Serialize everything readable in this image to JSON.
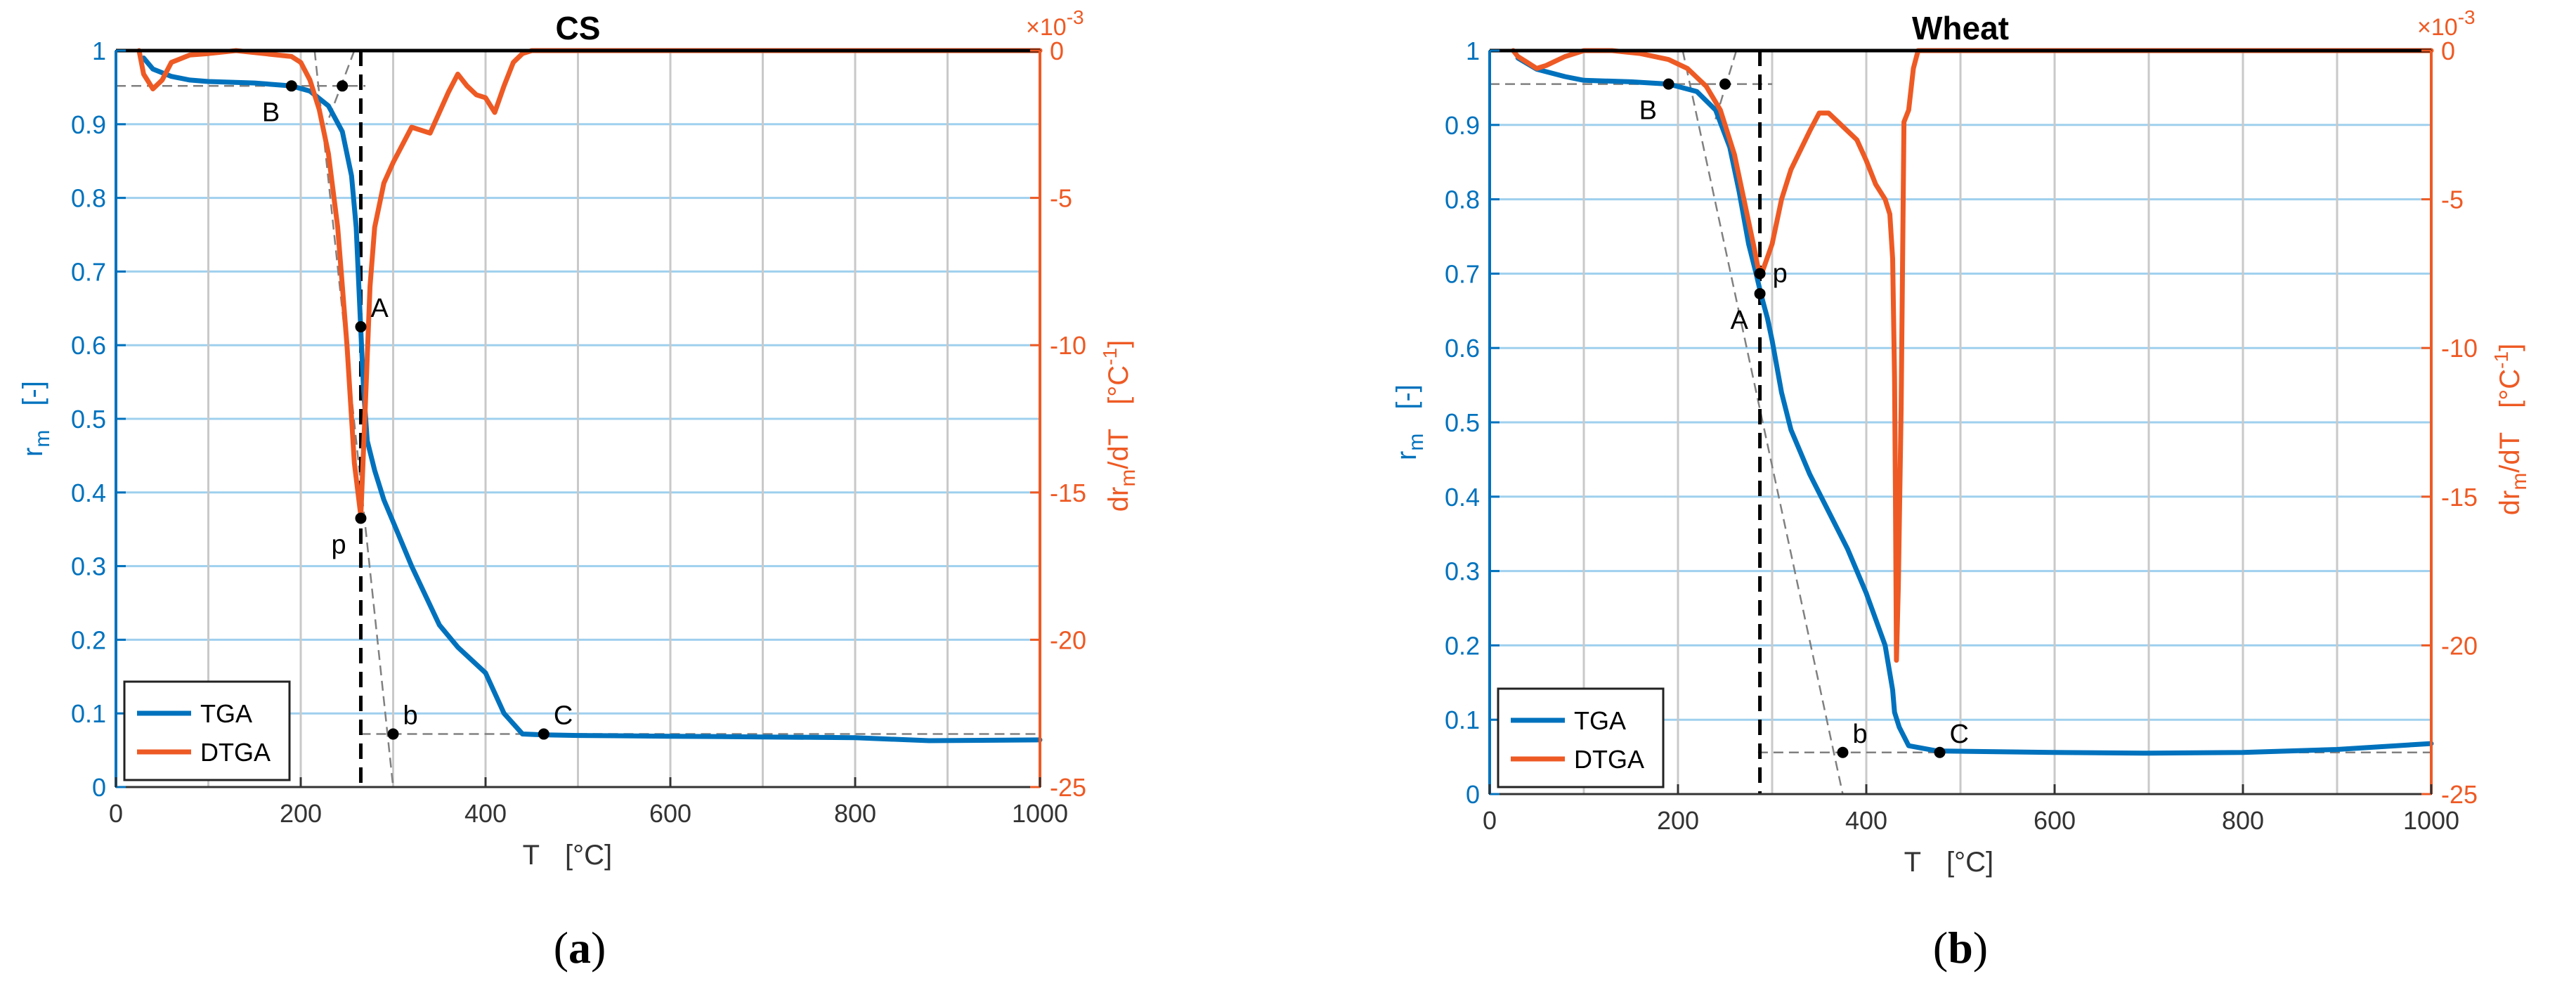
{
  "colors": {
    "tga": "#0072BD",
    "dtga": "#EE5A24",
    "grid_major": "#c9c9c9",
    "grid_minor": "#9fd0ee",
    "annot": "#000000",
    "guide": "#808080"
  },
  "x_axis": {
    "label": "T",
    "unit": "[°C]",
    "ticks": [
      "0",
      "200",
      "400",
      "600",
      "800",
      "1000"
    ]
  },
  "y_left": {
    "label_main": "r",
    "label_sub": "m",
    "unit": "[-]",
    "ticks": [
      "0",
      "0.1",
      "0.2",
      "0.3",
      "0.4",
      "0.5",
      "0.6",
      "0.7",
      "0.8",
      "0.9",
      "1"
    ]
  },
  "y_right": {
    "label_main": "dr",
    "label_sub": "m",
    "label_tail": "/dT",
    "unit_main": "[°C",
    "unit_sup": "-1",
    "unit_close": "]",
    "ticks": [
      "0",
      "-5",
      "-10",
      "-15",
      "-20",
      "-25"
    ],
    "exponent_base": "×10",
    "exponent_power": "-3"
  },
  "legend": {
    "tga": "TGA",
    "dtga": "DTGA"
  },
  "chart_data": [
    {
      "type": "line",
      "title": "CS",
      "caption_open": "(",
      "caption_letter": "a",
      "caption_close": ")",
      "xlim": [
        0,
        1000
      ],
      "ylim_left": [
        0,
        1
      ],
      "ylim_right": [
        -25,
        0
      ],
      "right_axis_scale": "×10^-3",
      "grid": true,
      "legend_position": "bottom-left",
      "series": [
        {
          "name": "TGA",
          "axis": "left",
          "x": [
            30,
            40,
            60,
            80,
            100,
            150,
            190,
            210,
            230,
            245,
            255,
            260,
            265,
            268,
            272,
            280,
            290,
            300,
            320,
            350,
            370,
            400,
            420,
            440,
            460,
            500,
            600,
            700,
            800,
            880,
            1000
          ],
          "y": [
            0.99,
            0.975,
            0.965,
            0.96,
            0.958,
            0.956,
            0.952,
            0.945,
            0.925,
            0.89,
            0.83,
            0.76,
            0.62,
            0.54,
            0.47,
            0.43,
            0.39,
            0.36,
            0.3,
            0.22,
            0.19,
            0.155,
            0.1,
            0.072,
            0.071,
            0.07,
            0.069,
            0.068,
            0.067,
            0.063,
            0.064
          ]
        },
        {
          "name": "DTGA",
          "axis": "right",
          "x": [
            25,
            30,
            40,
            50,
            60,
            80,
            100,
            130,
            160,
            190,
            200,
            210,
            220,
            230,
            240,
            250,
            258,
            265,
            270,
            275,
            280,
            290,
            300,
            320,
            340,
            360,
            370,
            380,
            390,
            400,
            410,
            420,
            430,
            440,
            450,
            460,
            500,
            600,
            700,
            800,
            900,
            1000
          ],
          "y": [
            0,
            -0.8,
            -1.3,
            -1.0,
            -0.4,
            -0.15,
            -0.1,
            0,
            -0.1,
            -0.2,
            -0.4,
            -1.0,
            -2.0,
            -3.5,
            -6.0,
            -10.0,
            -14.0,
            -15.8,
            -12.0,
            -8.0,
            -6.0,
            -4.5,
            -3.8,
            -2.6,
            -2.8,
            -1.4,
            -0.8,
            -1.2,
            -1.5,
            -1.6,
            -2.1,
            -1.2,
            -0.4,
            -0.1,
            0,
            0,
            0,
            0,
            0,
            0,
            0,
            0
          ]
        }
      ],
      "points": [
        {
          "label": "B",
          "x": 190,
          "y": 0.952,
          "label_pos": "below-left"
        },
        {
          "label": "",
          "x": 245,
          "y": 0.952,
          "label_pos": "none"
        },
        {
          "label": "A",
          "x": 265,
          "y": 0.625,
          "label_pos": "above-right"
        },
        {
          "label": "p",
          "x": 265,
          "y": 0.365,
          "label_pos": "below-left"
        },
        {
          "label": "b",
          "x": 300,
          "y": 0.072,
          "label_pos": "above-right"
        },
        {
          "label": "C",
          "x": 463,
          "y": 0.072,
          "label_pos": "above-right"
        }
      ],
      "vline_x": 265,
      "guide_lines": [
        {
          "x1": 0,
          "y1": 0.952,
          "x2": 270,
          "y2": 0.952
        },
        {
          "x1": 215,
          "y1": 1.0,
          "x2": 300,
          "y2": 0.0
        },
        {
          "x1": 258,
          "y1": 1.0,
          "x2": 228,
          "y2": 0.9
        },
        {
          "x1": 265,
          "y1": 0.072,
          "x2": 1000,
          "y2": 0.072
        }
      ]
    },
    {
      "type": "line",
      "title": "Wheat",
      "caption_open": "(",
      "caption_letter": "b",
      "caption_close": ")",
      "xlim": [
        0,
        1000
      ],
      "ylim_left": [
        0,
        1
      ],
      "ylim_right": [
        -25,
        0
      ],
      "right_axis_scale": "×10^-3",
      "grid": true,
      "legend_position": "bottom-left",
      "series": [
        {
          "name": "TGA",
          "axis": "left",
          "x": [
            30,
            50,
            80,
            100,
            150,
            190,
            220,
            240,
            255,
            265,
            275,
            283,
            288,
            295,
            300,
            310,
            320,
            340,
            360,
            380,
            400,
            420,
            428,
            430,
            435,
            445,
            475,
            600,
            700,
            800,
            900,
            1000
          ],
          "y": [
            0.99,
            0.975,
            0.965,
            0.96,
            0.958,
            0.955,
            0.945,
            0.92,
            0.87,
            0.81,
            0.74,
            0.7,
            0.673,
            0.64,
            0.61,
            0.54,
            0.49,
            0.43,
            0.38,
            0.33,
            0.27,
            0.2,
            0.14,
            0.11,
            0.09,
            0.065,
            0.058,
            0.056,
            0.055,
            0.056,
            0.06,
            0.068
          ]
        },
        {
          "name": "DTGA",
          "axis": "right",
          "x": [
            25,
            30,
            40,
            50,
            60,
            80,
            100,
            130,
            160,
            190,
            210,
            230,
            245,
            260,
            270,
            280,
            285,
            290,
            300,
            310,
            320,
            340,
            350,
            360,
            370,
            390,
            400,
            410,
            420,
            425,
            428,
            430,
            431,
            432,
            434,
            437,
            440,
            445,
            450,
            455,
            470,
            500,
            600,
            700,
            800,
            900,
            1000
          ],
          "y": [
            0,
            -0.2,
            -0.4,
            -0.6,
            -0.5,
            -0.2,
            0,
            0,
            -0.1,
            -0.3,
            -0.6,
            -1.2,
            -2.0,
            -3.5,
            -5.0,
            -6.5,
            -7.3,
            -7.4,
            -6.5,
            -5.0,
            -4.0,
            -2.7,
            -2.1,
            -2.1,
            -2.4,
            -3.0,
            -3.7,
            -4.5,
            -5.0,
            -5.5,
            -7.0,
            -11.0,
            -15.0,
            -20.5,
            -18.0,
            -12.0,
            -2.4,
            -2.0,
            -0.6,
            0,
            0,
            0,
            0,
            0,
            0,
            0,
            0
          ]
        }
      ],
      "points": [
        {
          "label": "B",
          "x": 190,
          "y": 0.955,
          "label_pos": "below-left"
        },
        {
          "label": "",
          "x": 250,
          "y": 0.955,
          "label_pos": "none"
        },
        {
          "label": "p",
          "x": 287,
          "y": 0.7,
          "label_pos": "right"
        },
        {
          "label": "A",
          "x": 287,
          "y": 0.673,
          "label_pos": "below-left"
        },
        {
          "label": "b",
          "x": 375,
          "y": 0.056,
          "label_pos": "above-right"
        },
        {
          "label": "C",
          "x": 478,
          "y": 0.056,
          "label_pos": "above-right"
        }
      ],
      "vline_x": 287,
      "guide_lines": [
        {
          "x1": 0,
          "y1": 0.955,
          "x2": 300,
          "y2": 0.955
        },
        {
          "x1": 205,
          "y1": 1.0,
          "x2": 375,
          "y2": 0.0
        },
        {
          "x1": 262,
          "y1": 1.0,
          "x2": 238,
          "y2": 0.9
        },
        {
          "x1": 285,
          "y1": 0.056,
          "x2": 1000,
          "y2": 0.056
        }
      ]
    }
  ]
}
